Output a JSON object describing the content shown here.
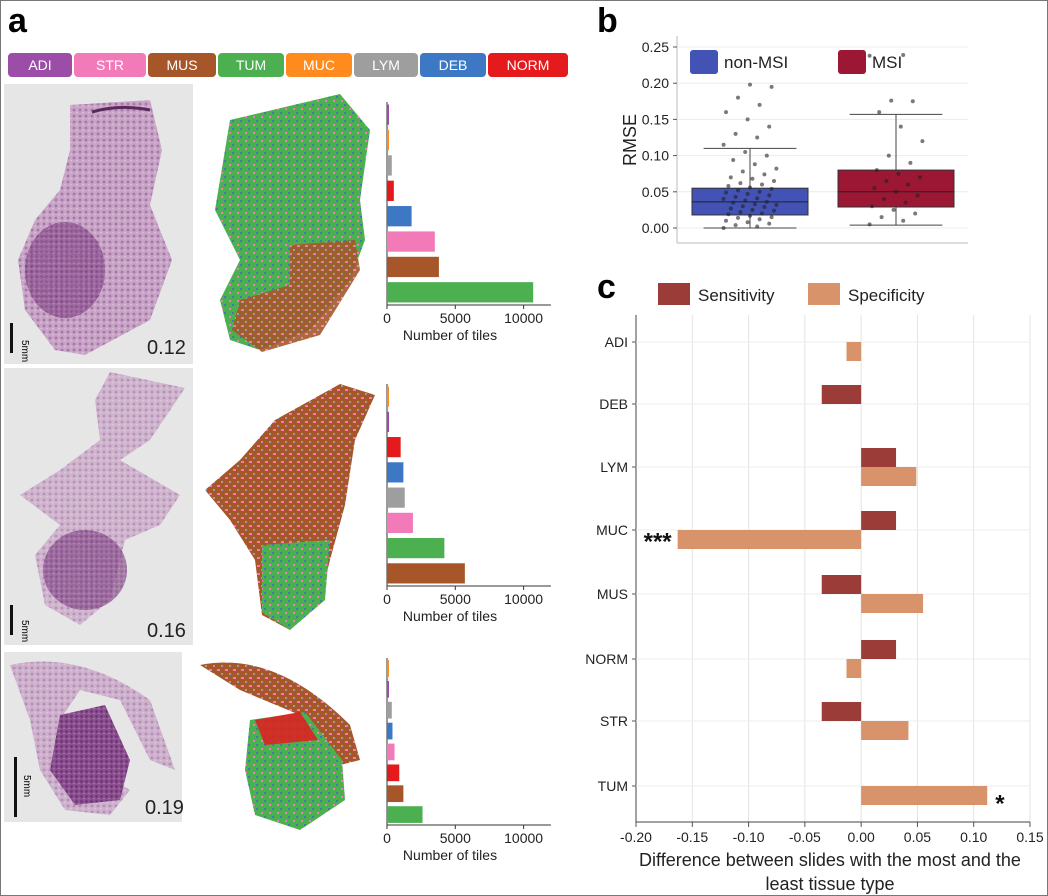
{
  "panel_labels": {
    "a": "a",
    "b": "b",
    "c": "c"
  },
  "tissue_legend": [
    {
      "label": "ADI",
      "color": "#9b4da8"
    },
    {
      "label": "STR",
      "color": "#f27ab8"
    },
    {
      "label": "MUS",
      "color": "#a65628"
    },
    {
      "label": "TUM",
      "color": "#4caf50"
    },
    {
      "label": "MUC",
      "color": "#ff8a1d"
    },
    {
      "label": "LYM",
      "color": "#9e9e9e"
    },
    {
      "label": "DEB",
      "color": "#3d78c4"
    },
    {
      "label": "NORM",
      "color": "#e41a1c"
    }
  ],
  "slides": [
    {
      "score": "0.12",
      "scale_label": "5mm"
    },
    {
      "score": "0.16",
      "scale_label": "5mm"
    },
    {
      "score": "0.19",
      "scale_label": "5mm"
    }
  ],
  "chart_data": [
    {
      "panel": "a-1",
      "type": "bar",
      "orientation": "horizontal",
      "categories": [
        "ADI",
        "MUC",
        "LYM",
        "NORM",
        "DEB",
        "STR",
        "MUS",
        "TUM"
      ],
      "values": [
        100,
        50,
        350,
        500,
        1800,
        3500,
        3800,
        10700
      ],
      "xlabel": "Number of tiles",
      "xticks": [
        0,
        5000,
        10000
      ],
      "xlim": [
        0,
        12000
      ]
    },
    {
      "panel": "a-2",
      "type": "bar",
      "orientation": "horizontal",
      "categories": [
        "MUC",
        "ADI",
        "NORM",
        "DEB",
        "LYM",
        "STR",
        "TUM",
        "MUS"
      ],
      "values": [
        60,
        150,
        1000,
        1200,
        1300,
        1900,
        4200,
        5700
      ],
      "xlabel": "Number of tiles",
      "xticks": [
        0,
        5000,
        10000
      ],
      "xlim": [
        0,
        12000
      ]
    },
    {
      "panel": "a-3",
      "type": "bar",
      "orientation": "horizontal",
      "categories": [
        "MUC",
        "ADI",
        "LYM",
        "DEB",
        "STR",
        "NORM",
        "MUS",
        "TUM"
      ],
      "values": [
        30,
        60,
        350,
        400,
        550,
        900,
        1200,
        2600
      ],
      "xlabel": "Number of tiles",
      "xticks": [
        0,
        5000,
        10000
      ],
      "xlim": [
        0,
        12000
      ]
    },
    {
      "panel": "b",
      "type": "box",
      "ylabel": "RMSE",
      "ylim": [
        0,
        0.25
      ],
      "yticks": [
        0.0,
        0.05,
        0.1,
        0.15,
        0.2,
        0.25
      ],
      "legend_position": "top-left",
      "series": [
        {
          "name": "non-MSI",
          "color": "#4352b5",
          "whisker_low": 0.0,
          "q1": 0.018,
          "median": 0.036,
          "q3": 0.055,
          "whisker_high": 0.11,
          "points": [
            0.0,
            0.002,
            0.004,
            0.006,
            0.008,
            0.01,
            0.012,
            0.014,
            0.015,
            0.017,
            0.019,
            0.02,
            0.022,
            0.024,
            0.025,
            0.027,
            0.029,
            0.03,
            0.032,
            0.033,
            0.035,
            0.036,
            0.038,
            0.04,
            0.041,
            0.043,
            0.045,
            0.047,
            0.049,
            0.05,
            0.052,
            0.054,
            0.056,
            0.058,
            0.06,
            0.062,
            0.065,
            0.068,
            0.07,
            0.074,
            0.078,
            0.082,
            0.088,
            0.094,
            0.1,
            0.105,
            0.115,
            0.125,
            0.13,
            0.14,
            0.15,
            0.16,
            0.17,
            0.18,
            0.195,
            0.198
          ]
        },
        {
          "name": "MSI",
          "color": "#9b1733",
          "whisker_low": 0.004,
          "q1": 0.029,
          "median": 0.05,
          "q3": 0.08,
          "whisker_high": 0.157,
          "points": [
            0.005,
            0.01,
            0.015,
            0.02,
            0.025,
            0.03,
            0.035,
            0.04,
            0.045,
            0.05,
            0.055,
            0.06,
            0.065,
            0.07,
            0.075,
            0.08,
            0.09,
            0.1,
            0.12,
            0.14,
            0.16,
            0.175,
            0.176,
            0.238,
            0.239
          ]
        }
      ]
    },
    {
      "panel": "c",
      "type": "bar",
      "orientation": "horizontal",
      "categories": [
        "ADI",
        "DEB",
        "LYM",
        "MUC",
        "MUS",
        "NORM",
        "STR",
        "TUM"
      ],
      "xlabel": "Difference between slides with the most and the least tissue type",
      "xlim": [
        -0.2,
        0.15
      ],
      "xticks": [
        "-0.20",
        "-0.15",
        "-0.10",
        "-0.05",
        "0.00",
        "0.05",
        "0.10",
        "0.15"
      ],
      "legend_position": "top-left",
      "series": [
        {
          "name": "Sensitivity",
          "color": "#9c3c38",
          "values": [
            null,
            -0.035,
            0.031,
            0.031,
            -0.035,
            0.031,
            -0.035,
            null
          ]
        },
        {
          "name": "Specificity",
          "color": "#d9936a",
          "values": [
            -0.013,
            null,
            0.049,
            -0.163,
            0.055,
            -0.013,
            0.042,
            0.112
          ]
        }
      ],
      "annotations": [
        {
          "category": "MUC",
          "text": "***"
        },
        {
          "category": "TUM",
          "text": "*"
        }
      ]
    }
  ]
}
